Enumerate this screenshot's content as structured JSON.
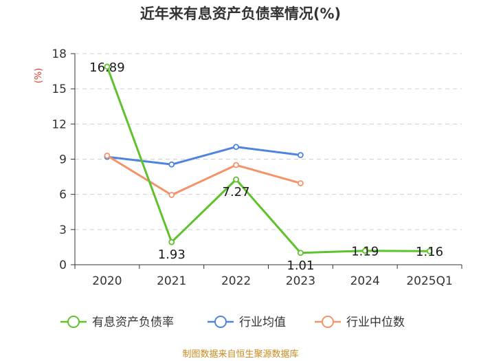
{
  "chart_data": {
    "type": "line",
    "title": "近年来有息资产负债率情况(%)",
    "ylabel": "(%)",
    "xlabel": "",
    "categories": [
      "2020",
      "2021",
      "2022",
      "2023",
      "2024",
      "2025Q1"
    ],
    "ylim": [
      0,
      18
    ],
    "yticks": [
      0,
      3,
      6,
      9,
      12,
      15,
      18
    ],
    "grid": true,
    "legend_position": "bottom",
    "series": [
      {
        "name": "有息资产负债率",
        "color": "#5ec22b",
        "values": [
          16.89,
          1.93,
          7.27,
          1.01,
          1.19,
          1.16
        ],
        "labels": [
          "16.89",
          "1.93",
          "7.27",
          "1.01",
          "1.19",
          "1.16"
        ]
      },
      {
        "name": "行业均值",
        "color": "#4e84e0",
        "values": [
          9.2,
          8.55,
          10.05,
          9.35,
          null,
          null
        ]
      },
      {
        "name": "行业中位数",
        "color": "#f4936a",
        "values": [
          9.3,
          5.95,
          8.5,
          6.95,
          null,
          null
        ]
      }
    ]
  },
  "source": "制图数据来自恒生聚源数据库"
}
